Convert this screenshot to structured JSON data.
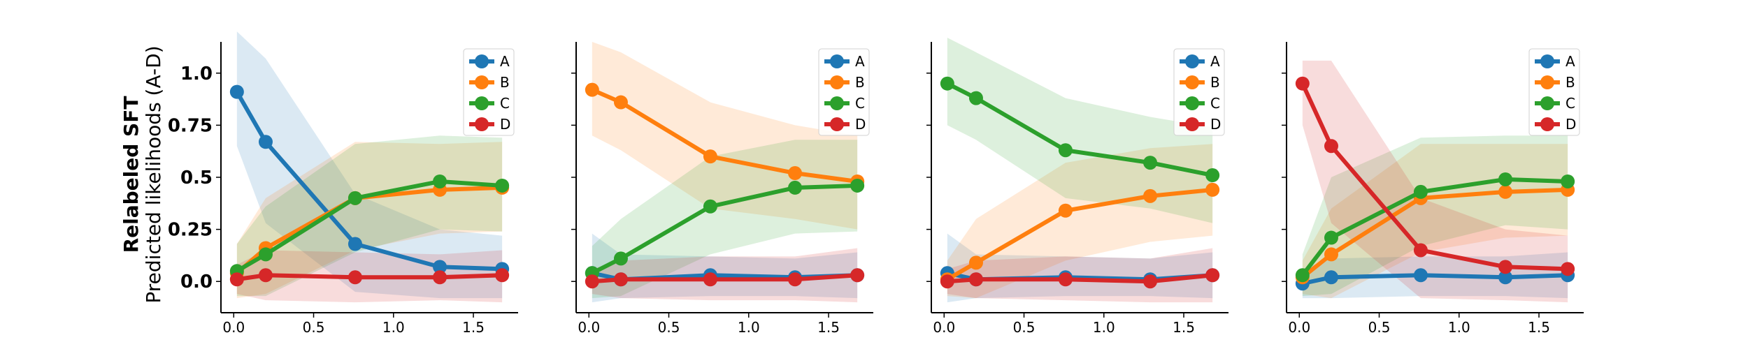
{
  "figure": {
    "ylabel_main": "Relabeled SFT",
    "ylabel_sub": "Predicted likelihoods (A-D)"
  },
  "chart_data": [
    {
      "type": "line",
      "xlim": [
        -0.08,
        1.78
      ],
      "ylim": [
        -0.15,
        1.15
      ],
      "xticks": [
        0.0,
        0.5,
        1.0,
        1.5
      ],
      "xtick_labels": [
        "0.0",
        "0.5",
        "1.0",
        "1.5"
      ],
      "yticks": [
        0.0,
        0.25,
        0.5,
        0.75,
        1.0
      ],
      "ytick_labels": [
        "0.0",
        "0.25",
        "0.5",
        "0.75",
        "1.0"
      ],
      "legend_position": "top-right",
      "x": [
        0.02,
        0.2,
        0.76,
        1.29,
        1.68
      ],
      "series": [
        {
          "name": "A",
          "color": "#1f77b4",
          "values": [
            0.91,
            0.67,
            0.18,
            0.07,
            0.06
          ],
          "lower": [
            0.65,
            0.28,
            -0.05,
            -0.08,
            -0.08
          ],
          "upper": [
            1.2,
            1.07,
            0.42,
            0.25,
            0.22
          ]
        },
        {
          "name": "B",
          "color": "#ff7f0e",
          "values": [
            0.04,
            0.16,
            0.4,
            0.44,
            0.45
          ],
          "lower": [
            -0.08,
            -0.06,
            0.15,
            0.23,
            0.24
          ],
          "upper": [
            0.18,
            0.4,
            0.67,
            0.66,
            0.67
          ]
        },
        {
          "name": "C",
          "color": "#2ca02c",
          "values": [
            0.05,
            0.13,
            0.4,
            0.48,
            0.46
          ],
          "lower": [
            -0.07,
            -0.07,
            0.14,
            0.25,
            0.24
          ],
          "upper": [
            0.18,
            0.36,
            0.66,
            0.7,
            0.69
          ]
        },
        {
          "name": "D",
          "color": "#d62728",
          "values": [
            0.01,
            0.03,
            0.02,
            0.02,
            0.03
          ],
          "lower": [
            -0.06,
            -0.09,
            -0.1,
            -0.09,
            -0.1
          ],
          "upper": [
            0.08,
            0.15,
            0.14,
            0.13,
            0.15
          ]
        }
      ]
    },
    {
      "type": "line",
      "xlim": [
        -0.08,
        1.78
      ],
      "ylim": [
        -0.15,
        1.15
      ],
      "xticks": [
        0.0,
        0.5,
        1.0,
        1.5
      ],
      "xtick_labels": [
        "0.0",
        "0.5",
        "1.0",
        "1.5"
      ],
      "yticks": [
        0.0,
        0.25,
        0.5,
        0.75,
        1.0
      ],
      "ytick_labels": [],
      "legend_position": "top-right",
      "x": [
        0.02,
        0.2,
        0.76,
        1.29,
        1.68
      ],
      "series": [
        {
          "name": "A",
          "color": "#1f77b4",
          "values": [
            0.04,
            0.01,
            0.03,
            0.02,
            0.03
          ],
          "lower": [
            -0.1,
            -0.08,
            -0.07,
            -0.07,
            -0.08
          ],
          "upper": [
            0.23,
            0.13,
            0.12,
            0.11,
            0.14
          ]
        },
        {
          "name": "B",
          "color": "#ff7f0e",
          "values": [
            0.92,
            0.86,
            0.6,
            0.52,
            0.48
          ],
          "lower": [
            0.7,
            0.63,
            0.35,
            0.3,
            0.25
          ],
          "upper": [
            1.15,
            1.1,
            0.86,
            0.75,
            0.7
          ]
        },
        {
          "name": "C",
          "color": "#2ca02c",
          "values": [
            0.04,
            0.11,
            0.36,
            0.45,
            0.46
          ],
          "lower": [
            -0.08,
            -0.07,
            0.13,
            0.23,
            0.24
          ],
          "upper": [
            0.17,
            0.3,
            0.6,
            0.68,
            0.68
          ]
        },
        {
          "name": "D",
          "color": "#d62728",
          "values": [
            0.0,
            0.01,
            0.01,
            0.01,
            0.03
          ],
          "lower": [
            -0.06,
            -0.08,
            -0.09,
            -0.09,
            -0.1
          ],
          "upper": [
            0.06,
            0.1,
            0.12,
            0.12,
            0.16
          ]
        }
      ]
    },
    {
      "type": "line",
      "xlim": [
        -0.08,
        1.78
      ],
      "ylim": [
        -0.15,
        1.15
      ],
      "xticks": [
        0.0,
        0.5,
        1.0,
        1.5
      ],
      "xtick_labels": [
        "0.0",
        "0.5",
        "1.0",
        "1.5"
      ],
      "yticks": [
        0.0,
        0.25,
        0.5,
        0.75,
        1.0
      ],
      "ytick_labels": [],
      "legend_position": "top-right",
      "x": [
        0.02,
        0.2,
        0.76,
        1.29,
        1.68
      ],
      "series": [
        {
          "name": "A",
          "color": "#1f77b4",
          "values": [
            0.04,
            0.01,
            0.02,
            0.01,
            0.03
          ],
          "lower": [
            -0.1,
            -0.08,
            -0.07,
            -0.07,
            -0.08
          ],
          "upper": [
            0.23,
            0.13,
            0.12,
            0.11,
            0.14
          ]
        },
        {
          "name": "B",
          "color": "#ff7f0e",
          "values": [
            0.01,
            0.09,
            0.34,
            0.41,
            0.44
          ],
          "lower": [
            -0.07,
            -0.08,
            0.1,
            0.19,
            0.22
          ],
          "upper": [
            0.1,
            0.3,
            0.57,
            0.64,
            0.66
          ]
        },
        {
          "name": "C",
          "color": "#2ca02c",
          "values": [
            0.95,
            0.88,
            0.63,
            0.57,
            0.51
          ],
          "lower": [
            0.75,
            0.68,
            0.4,
            0.35,
            0.28
          ],
          "upper": [
            1.17,
            1.1,
            0.88,
            0.79,
            0.74
          ]
        },
        {
          "name": "D",
          "color": "#d62728",
          "values": [
            0.0,
            0.01,
            0.01,
            0.0,
            0.03
          ],
          "lower": [
            -0.06,
            -0.08,
            -0.09,
            -0.1,
            -0.1
          ],
          "upper": [
            0.06,
            0.1,
            0.12,
            0.11,
            0.16
          ]
        }
      ]
    },
    {
      "type": "line",
      "xlim": [
        -0.08,
        1.78
      ],
      "ylim": [
        -0.15,
        1.15
      ],
      "xticks": [
        0.0,
        0.5,
        1.0,
        1.5
      ],
      "xtick_labels": [
        "0.0",
        "0.5",
        "1.0",
        "1.5"
      ],
      "yticks": [
        0.0,
        0.25,
        0.5,
        0.75,
        1.0
      ],
      "ytick_labels": [],
      "legend_position": "top-right",
      "x": [
        0.02,
        0.2,
        0.76,
        1.29,
        1.68
      ],
      "series": [
        {
          "name": "A",
          "color": "#1f77b4",
          "values": [
            -0.01,
            0.02,
            0.03,
            0.02,
            0.03
          ],
          "lower": [
            -0.08,
            -0.08,
            -0.07,
            -0.07,
            -0.08
          ],
          "upper": [
            0.06,
            0.11,
            0.12,
            0.12,
            0.14
          ]
        },
        {
          "name": "B",
          "color": "#ff7f0e",
          "values": [
            0.02,
            0.13,
            0.4,
            0.43,
            0.44
          ],
          "lower": [
            -0.06,
            -0.08,
            0.14,
            0.21,
            0.22
          ],
          "upper": [
            0.1,
            0.35,
            0.66,
            0.66,
            0.66
          ]
        },
        {
          "name": "C",
          "color": "#2ca02c",
          "values": [
            0.03,
            0.21,
            0.43,
            0.49,
            0.48
          ],
          "lower": [
            -0.07,
            -0.06,
            0.17,
            0.27,
            0.25
          ],
          "upper": [
            0.13,
            0.5,
            0.69,
            0.7,
            0.7
          ]
        },
        {
          "name": "D",
          "color": "#d62728",
          "values": [
            0.95,
            0.65,
            0.15,
            0.07,
            0.06
          ],
          "lower": [
            0.75,
            0.28,
            -0.08,
            -0.09,
            -0.1
          ],
          "upper": [
            1.06,
            1.06,
            0.4,
            0.25,
            0.22
          ]
        }
      ]
    }
  ]
}
